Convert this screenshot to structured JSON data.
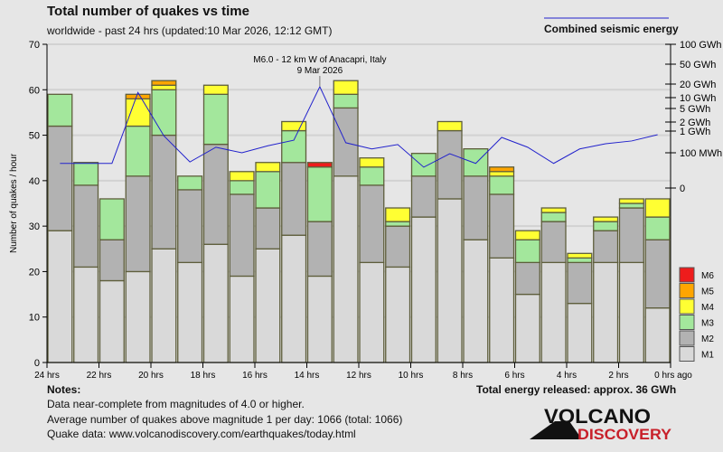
{
  "title": "Total number of quakes vs time",
  "subtitle": "worldwide - past 24 hrs (updated:10 Mar 2026, 12:12 GMT)",
  "energy_legend": "Combined seismic energy",
  "notes": {
    "heading": "Notes:",
    "lines": [
      "Data near-complete from magnitudes of 4.0 or higher.",
      "Average number of quakes above magnitude 1 per day: 1066 (total: 1066)",
      "Quake data: www.volcanodiscovery.com/earthquakes/today.html"
    ]
  },
  "total_energy": "Total energy released: approx. 36 GWh",
  "logo": {
    "line1": "VOLCANO",
    "line2": "DISCOVERY"
  },
  "colors": {
    "M1": "#d9d9d9",
    "M2": "#b2b2b2",
    "M3": "#a3e79c",
    "M4": "#ffff33",
    "M5": "#ffa500",
    "M6": "#ee1c1c",
    "energy": "#2222cc",
    "logo_red": "#c8202a"
  },
  "chart_data": {
    "type": "bar",
    "stacked": true,
    "ylabel": "Number of quakes / hour",
    "ylim": [
      0,
      70
    ],
    "yticks": [
      0,
      10,
      20,
      30,
      40,
      50,
      60,
      70
    ],
    "xticks": [
      "24 hrs",
      "22 hrs",
      "20 hrs",
      "18 hrs",
      "16 hrs",
      "14 hrs",
      "12 hrs",
      "10 hrs",
      "8 hrs",
      "6 hrs",
      "4 hrs",
      "2 hrs",
      "0 hrs ago"
    ],
    "legend": [
      "M6",
      "M5",
      "M4",
      "M3",
      "M2",
      "M1"
    ],
    "legend_position": "bottom-right",
    "series": [
      {
        "name": "M1",
        "values": [
          29,
          21,
          18,
          20,
          25,
          22,
          26,
          19,
          25,
          28,
          19,
          41,
          22,
          21,
          32,
          36,
          27,
          23,
          15,
          22,
          13,
          22,
          22,
          12
        ]
      },
      {
        "name": "M2",
        "values": [
          23,
          18,
          9,
          21,
          25,
          16,
          22,
          18,
          9,
          16,
          12,
          15,
          17,
          9,
          9,
          15,
          14,
          14,
          7,
          9,
          9,
          7,
          12,
          15
        ]
      },
      {
        "name": "M3",
        "values": [
          7,
          5,
          9,
          11,
          10,
          3,
          11,
          3,
          8,
          7,
          12,
          3,
          4,
          1,
          5,
          0,
          6,
          4,
          5,
          2,
          1,
          2,
          1,
          5
        ]
      },
      {
        "name": "M4",
        "values": [
          0,
          0,
          0,
          6,
          1,
          0,
          2,
          2,
          2,
          2,
          0,
          3,
          2,
          3,
          0,
          2,
          0,
          1,
          2,
          1,
          1,
          1,
          1,
          4
        ]
      },
      {
        "name": "M5",
        "values": [
          0,
          0,
          0,
          1,
          1,
          0,
          0,
          0,
          0,
          0,
          0,
          0,
          0,
          0,
          0,
          0,
          0,
          1,
          0,
          0,
          0,
          0,
          0,
          0
        ]
      },
      {
        "name": "M6",
        "values": [
          0,
          0,
          0,
          0,
          0,
          0,
          0,
          0,
          0,
          0,
          1,
          0,
          0,
          0,
          0,
          0,
          0,
          0,
          0,
          0,
          0,
          0,
          0,
          0
        ]
      }
    ],
    "energy": {
      "name": "Combined seismic energy",
      "unit": "GWh",
      "axis_ticks": [
        "100 GWh",
        "50 GWh",
        "20 GWh",
        "10 GWh",
        "5 GWh",
        "2 GWh",
        "1 GWh",
        "100 MWh",
        "0"
      ],
      "values": [
        0.05,
        0.05,
        0.05,
        13,
        0.6,
        0.055,
        0.18,
        0.1,
        0.21,
        0.38,
        17.5,
        0.29,
        0.15,
        0.24,
        0.039,
        0.094,
        0.05,
        0.51,
        0.18,
        0.05,
        0.15,
        0.26,
        0.35,
        0.68
      ]
    },
    "annotation": {
      "line1": "M6.0 - 12 km W of Anacapri, Italy",
      "line2": "9 Mar 2026",
      "bar_index": 10
    }
  }
}
